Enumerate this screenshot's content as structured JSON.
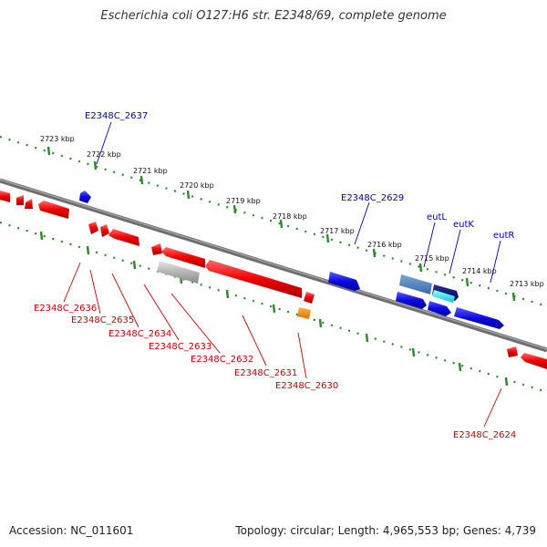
{
  "title": "Escherichia coli O127:H6 str. E2348/69, complete genome",
  "footer": {
    "accession": "Accession: NC_011601",
    "summary": "Topology: circular; Length: 4,965,553 bp; Genes: 4,739"
  },
  "colors": {
    "forward_gene": "#1010dd",
    "reverse_gene": "#e00000",
    "pseudogene": "#b0b0b0",
    "rna_gene": "#f08000",
    "backbone": "#777777",
    "ticks": "#2a8a2a",
    "label_forward": "#0000bb",
    "label_reverse": "#cc0000"
  },
  "kbp_labels": [
    "2723 kbp",
    "2722 kbp",
    "2721 kbp",
    "2720 kbp",
    "2719 kbp",
    "2718 kbp",
    "2717 kbp",
    "2716 kbp",
    "2715 kbp",
    "2714 kbp",
    "2713 kbp"
  ],
  "gene_labels": {
    "forward": [
      "E2348C_2637",
      "E2348C_2629",
      "eutL",
      "eutK",
      "eutR"
    ],
    "reverse": [
      "E2348C_2636",
      "E2348C_2635",
      "E2348C_2634",
      "E2348C_2633",
      "E2348C_2632",
      "E2348C_2631",
      "E2348C_2630",
      "E2348C_2624"
    ]
  }
}
